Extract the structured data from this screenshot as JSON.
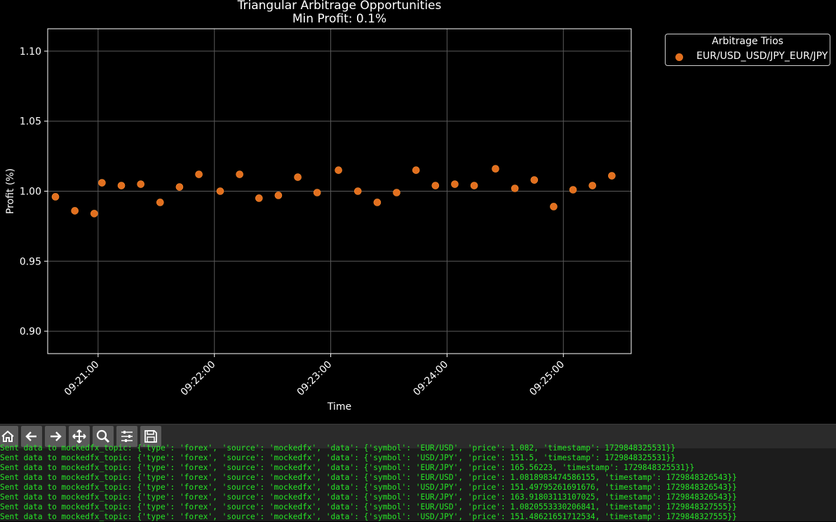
{
  "chart_data": {
    "type": "scatter",
    "title": "Triangular Arbitrage Opportunities",
    "subtitle": "Min Profit: 0.1%",
    "xlabel": "Time",
    "ylabel": "Profit (%)",
    "ylim": [
      0.884,
      1.116
    ],
    "xlim_seconds_range": [
      "09:20:34",
      "09:25:35"
    ],
    "x_ticks": [
      "09:21:00",
      "09:22:00",
      "09:23:00",
      "09:24:00",
      "09:25:00"
    ],
    "y_ticks": [
      "0.90",
      "0.95",
      "1.00",
      "1.05",
      "1.10"
    ],
    "grid": true,
    "legend_placement": "outside-top-right",
    "legend_title": "Arbitrage Trios",
    "series": [
      {
        "name": "EUR/USD_USD/JPY_EUR/JPY",
        "color": "#e2701f",
        "x": [
          "09:20:38",
          "09:20:48",
          "09:20:58",
          "09:21:02",
          "09:21:12",
          "09:21:22",
          "09:21:32",
          "09:21:42",
          "09:21:52",
          "09:22:03",
          "09:22:13",
          "09:22:23",
          "09:22:33",
          "09:22:43",
          "09:22:53",
          "09:23:04",
          "09:23:14",
          "09:23:24",
          "09:23:34",
          "09:23:44",
          "09:23:54",
          "09:24:04",
          "09:24:14",
          "09:24:25",
          "09:24:35",
          "09:24:45",
          "09:24:55",
          "09:25:05",
          "09:25:15",
          "09:25:25"
        ],
        "y": [
          0.996,
          0.986,
          0.984,
          1.006,
          1.004,
          1.005,
          0.992,
          1.003,
          1.012,
          1.0,
          1.012,
          0.995,
          0.997,
          1.01,
          0.999,
          1.015,
          1.0,
          0.992,
          0.999,
          1.015,
          1.004,
          1.005,
          1.004,
          1.016,
          1.002,
          1.008,
          0.989,
          1.001,
          1.004,
          1.011
        ]
      }
    ]
  },
  "toolbar": {
    "buttons": [
      {
        "name": "home-button",
        "icon": "home-icon"
      },
      {
        "name": "back-button",
        "icon": "arrow-left-icon"
      },
      {
        "name": "forward-button",
        "icon": "arrow-right-icon"
      },
      {
        "name": "pan-button",
        "icon": "move-icon"
      },
      {
        "name": "zoom-button",
        "icon": "magnifier-icon"
      },
      {
        "name": "configure-subplots-button",
        "icon": "sliders-icon"
      },
      {
        "name": "save-button",
        "icon": "floppy-disk-icon"
      }
    ]
  },
  "terminal": {
    "lines": [
      "Sent data to mockedfx_topic: {'type': 'forex', 'source': 'mockedfx', 'data': {'symbol': 'EUR/USD', 'price': 1.082, 'timestamp': 1729848325531}}",
      "Sent data to mockedfx_topic: {'type': 'forex', 'source': 'mockedfx', 'data': {'symbol': 'USD/JPY', 'price': 151.5, 'timestamp': 1729848325531}}",
      "Sent data to mockedfx_topic: {'type': 'forex', 'source': 'mockedfx', 'data': {'symbol': 'EUR/JPY', 'price': 165.56223, 'timestamp': 1729848325531}}",
      "Sent data to mockedfx_topic: {'type': 'forex', 'source': 'mockedfx', 'data': {'symbol': 'EUR/USD', 'price': 1.0818983474586155, 'timestamp': 1729848326543}}",
      "Sent data to mockedfx_topic: {'type': 'forex', 'source': 'mockedfx', 'data': {'symbol': 'USD/JPY', 'price': 151.49795261691676, 'timestamp': 1729848326543}}",
      "Sent data to mockedfx_topic: {'type': 'forex', 'source': 'mockedfx', 'data': {'symbol': 'EUR/JPY', 'price': 163.91803113107025, 'timestamp': 1729848326543}}",
      "Sent data to mockedfx_topic: {'type': 'forex', 'source': 'mockedfx', 'data': {'symbol': 'EUR/USD', 'price': 1.0820553330206841, 'timestamp': 1729848327555}}",
      "Sent data to mockedfx_topic: {'type': 'forex', 'source': 'mockedfx', 'data': {'symbol': 'USD/JPY', 'price': 151.48621651712534, 'timestamp': 1729848327555}}"
    ]
  }
}
